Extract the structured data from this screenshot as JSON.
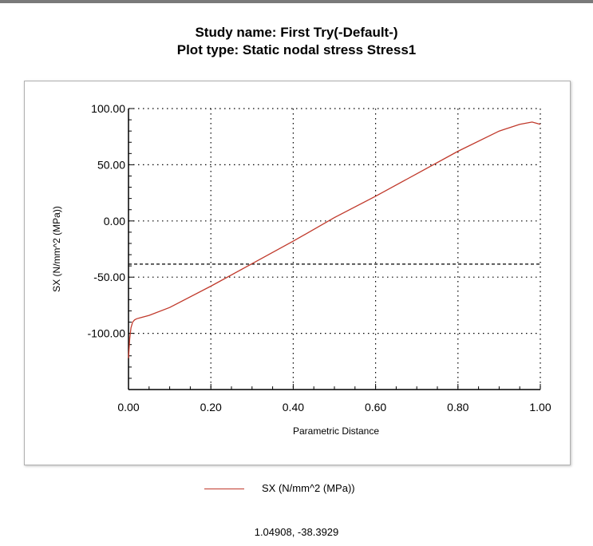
{
  "header": {
    "study_line": "Study name: First Try(-Default-)",
    "plot_line": "Plot type: Static nodal stress Stress1"
  },
  "chart_data": {
    "type": "line",
    "title": "Study name: First Try(-Default-)",
    "subtitle": "Plot type: Static nodal stress Stress1",
    "xlabel": "Parametric Distance",
    "ylabel": "SX (N/mm^2 (MPa))",
    "xlim": [
      0,
      1
    ],
    "ylim": [
      -150,
      100
    ],
    "x_ticks": [
      "0.00",
      "0.20",
      "0.40",
      "0.60",
      "0.80",
      "1.00"
    ],
    "y_ticks": [
      "100.00",
      "50.00",
      "0.00",
      "-50.00",
      "-100.00"
    ],
    "grid": true,
    "series": [
      {
        "name": "SX (N/mm^2 (MPa))",
        "color": "#c0392b",
        "x": [
          0.0,
          0.003,
          0.006,
          0.01,
          0.015,
          0.02,
          0.03,
          0.05,
          0.1,
          0.2,
          0.3,
          0.4,
          0.5,
          0.6,
          0.7,
          0.8,
          0.9,
          0.95,
          0.98,
          1.0
        ],
        "y": [
          -122,
          -105,
          -95,
          -90,
          -88,
          -87,
          -86,
          -84,
          -77,
          -58,
          -38,
          -18,
          3,
          22,
          42,
          62,
          80,
          86,
          88,
          86
        ]
      }
    ],
    "reference_line": {
      "y": -38.3929,
      "style": "dashed"
    }
  },
  "legend": {
    "label": "SX (N/mm^2 (MPa))"
  },
  "cursor": {
    "readout": "1.04908, -38.3929"
  }
}
